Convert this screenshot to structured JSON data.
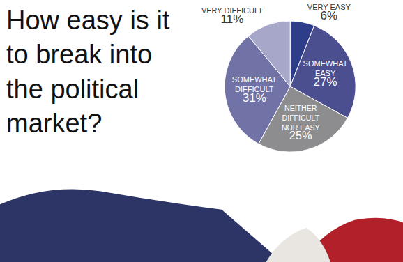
{
  "chart_data": {
    "type": "pie",
    "title": "How easy is it to break into the political market?",
    "categories": [
      "VERY EASY",
      "SOMEWHAT EASY",
      "NEITHER DIFFICULT NOR EASY",
      "SOMEWHAT DIFFICULT",
      "VERY DIFFICULT"
    ],
    "values": [
      6,
      27,
      25,
      31,
      11
    ],
    "value_labels": [
      "6%",
      "27%",
      "25%",
      "31%",
      "11%"
    ],
    "colors": [
      "#2e3d8a",
      "#4b4e8f",
      "#8d8d90",
      "#7173a7",
      "#a6a7c9"
    ],
    "data_labels": true
  }
}
